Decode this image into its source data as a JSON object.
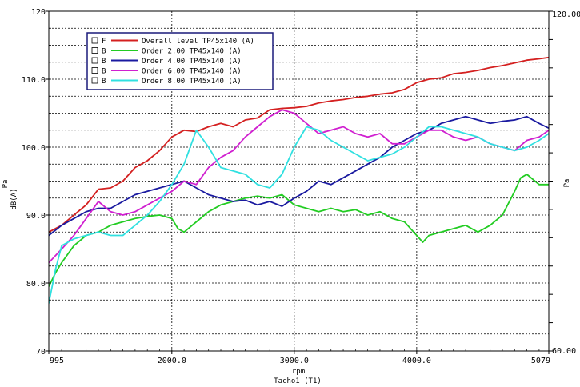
{
  "chart_data": {
    "type": "line",
    "xlabel": "rpm",
    "xsublabel": "Tacho1 (T1)",
    "ylabel_left_unit": "Pa",
    "ylabel_left": "dB(A)",
    "ylabel_right_unit": "Pa",
    "xlim": [
      995,
      5079
    ],
    "ylim": [
      70,
      120
    ],
    "ylim_right": [
      60.0,
      120.0
    ],
    "x_ticks": [
      "995",
      "2000.0",
      "3000.0",
      "4000.0",
      "5079"
    ],
    "y_ticks_left": [
      "120",
      "110.0",
      "100.0",
      "90.0",
      "80.0",
      "70"
    ],
    "y_ticks_right": [
      "120.00",
      "60.00"
    ],
    "grid": true,
    "legend_position": "top-left",
    "series": [
      {
        "name": "Overall level TP45x140 (A)",
        "flag": "F",
        "color": "#d42020",
        "x": [
          995,
          1100,
          1200,
          1300,
          1400,
          1500,
          1600,
          1700,
          1800,
          1900,
          2000,
          2100,
          2200,
          2300,
          2400,
          2500,
          2600,
          2700,
          2800,
          2900,
          3000,
          3100,
          3200,
          3300,
          3400,
          3500,
          3600,
          3700,
          3800,
          3900,
          4000,
          4100,
          4200,
          4300,
          4400,
          4500,
          4600,
          4700,
          4800,
          4900,
          5000,
          5079
        ],
        "y": [
          87.5,
          88.5,
          90.0,
          91.5,
          93.8,
          94.0,
          95.0,
          97.0,
          98.0,
          99.5,
          101.5,
          102.5,
          102.3,
          103.0,
          103.5,
          103.0,
          104.0,
          104.3,
          105.5,
          105.7,
          105.8,
          106.0,
          106.5,
          106.8,
          107.0,
          107.3,
          107.5,
          107.8,
          108.0,
          108.5,
          109.5,
          110.0,
          110.2,
          110.8,
          111.0,
          111.3,
          111.7,
          112.0,
          112.4,
          112.8,
          113.0,
          113.2
        ]
      },
      {
        "name": "Order 2.00 TP45x140 (A)",
        "flag": "B",
        "color": "#22cc22",
        "x": [
          995,
          1050,
          1100,
          1200,
          1300,
          1400,
          1500,
          1600,
          1700,
          1800,
          1900,
          2000,
          2050,
          2100,
          2200,
          2300,
          2400,
          2500,
          2600,
          2700,
          2800,
          2900,
          3000,
          3100,
          3200,
          3300,
          3400,
          3500,
          3600,
          3700,
          3800,
          3900,
          4000,
          4050,
          4100,
          4200,
          4300,
          4400,
          4500,
          4600,
          4700,
          4800,
          4850,
          4900,
          5000,
          5079
        ],
        "y": [
          79.5,
          81.5,
          83.0,
          85.5,
          87.0,
          87.5,
          88.5,
          89.0,
          89.5,
          89.8,
          90.0,
          89.5,
          88.0,
          87.5,
          89.0,
          90.5,
          91.5,
          92.0,
          92.5,
          92.8,
          92.5,
          93.0,
          91.5,
          91.0,
          90.5,
          91.0,
          90.5,
          90.8,
          90.0,
          90.5,
          89.5,
          89.0,
          87.0,
          86.0,
          87.0,
          87.5,
          88.0,
          88.5,
          87.5,
          88.5,
          90.0,
          93.5,
          95.5,
          96.0,
          94.5,
          94.5
        ]
      },
      {
        "name": "Order 4.00 TP45x140 (A)",
        "flag": "B",
        "color": "#1a1aa0",
        "x": [
          995,
          1100,
          1200,
          1300,
          1400,
          1500,
          1600,
          1700,
          1800,
          1900,
          2000,
          2100,
          2200,
          2300,
          2400,
          2500,
          2600,
          2700,
          2800,
          2900,
          3000,
          3100,
          3200,
          3300,
          3400,
          3500,
          3600,
          3700,
          3800,
          3900,
          4000,
          4100,
          4200,
          4300,
          4400,
          4500,
          4600,
          4700,
          4800,
          4900,
          5000,
          5079
        ],
        "y": [
          87.0,
          88.5,
          89.5,
          90.5,
          91.0,
          91.0,
          92.0,
          93.0,
          93.5,
          94.0,
          94.5,
          95.0,
          94.0,
          93.0,
          92.5,
          92.0,
          92.2,
          91.5,
          92.0,
          91.3,
          92.5,
          93.5,
          95.0,
          94.5,
          95.5,
          96.5,
          97.5,
          98.5,
          100.0,
          101.0,
          102.0,
          102.5,
          103.5,
          104.0,
          104.5,
          104.0,
          103.5,
          103.8,
          104.0,
          104.5,
          103.5,
          102.8
        ]
      },
      {
        "name": "Order 6.00 TP45x140 (A)",
        "flag": "B",
        "color": "#d020d0",
        "x": [
          995,
          1100,
          1200,
          1300,
          1400,
          1500,
          1600,
          1700,
          1800,
          1900,
          2000,
          2100,
          2200,
          2300,
          2400,
          2500,
          2600,
          2700,
          2800,
          2900,
          3000,
          3100,
          3200,
          3300,
          3400,
          3500,
          3600,
          3700,
          3800,
          3900,
          4000,
          4100,
          4200,
          4300,
          4400,
          4500,
          4600,
          4700,
          4800,
          4900,
          5000,
          5079
        ],
        "y": [
          83.0,
          85.0,
          87.0,
          89.5,
          92.0,
          90.5,
          90.0,
          90.5,
          91.5,
          92.5,
          93.5,
          95.0,
          94.5,
          97.0,
          98.5,
          99.5,
          101.5,
          103.0,
          104.5,
          105.5,
          105.0,
          103.5,
          102.0,
          102.5,
          103.0,
          102.0,
          101.5,
          102.0,
          100.5,
          100.5,
          101.5,
          102.5,
          102.5,
          101.5,
          101.0,
          101.5,
          100.5,
          100.0,
          99.5,
          101.0,
          101.5,
          102.5
        ]
      },
      {
        "name": "Order 8.00 TP45x140 (A)",
        "flag": "B",
        "color": "#30e0e0",
        "x": [
          995,
          1050,
          1100,
          1200,
          1300,
          1400,
          1500,
          1600,
          1700,
          1800,
          1900,
          2000,
          2100,
          2200,
          2300,
          2400,
          2500,
          2600,
          2700,
          2800,
          2900,
          3000,
          3100,
          3200,
          3300,
          3400,
          3500,
          3600,
          3700,
          3800,
          3900,
          4000,
          4100,
          4200,
          4300,
          4400,
          4500,
          4600,
          4700,
          4800,
          4900,
          5000,
          5079
        ],
        "y": [
          77.0,
          82.0,
          85.5,
          86.5,
          87.0,
          87.5,
          87.0,
          87.0,
          88.5,
          90.0,
          92.0,
          94.5,
          97.5,
          102.5,
          100.0,
          97.0,
          96.5,
          96.0,
          94.5,
          94.0,
          96.0,
          100.0,
          103.0,
          102.5,
          101.0,
          100.0,
          99.0,
          98.0,
          98.5,
          99.0,
          100.0,
          101.5,
          103.0,
          103.0,
          102.5,
          102.0,
          101.5,
          100.5,
          100.0,
          99.5,
          100.0,
          101.0,
          102.0
        ]
      }
    ]
  }
}
